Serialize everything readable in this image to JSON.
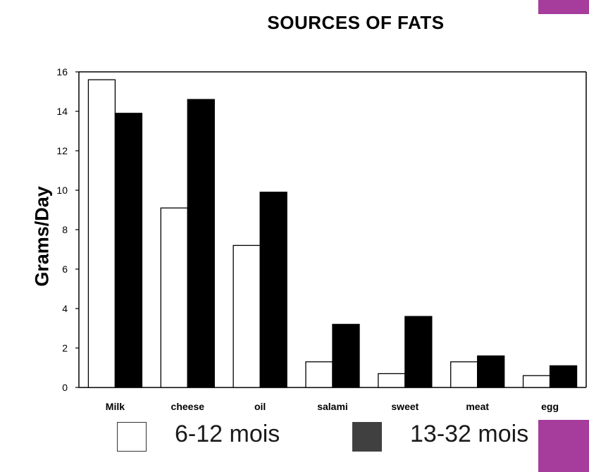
{
  "chart_data": {
    "type": "bar",
    "title": "SOURCES OF FATS",
    "ylabel": "Grams/Day",
    "xlabel": "",
    "ylim": [
      0,
      16
    ],
    "yticks": [
      "0",
      "2",
      "4",
      "6",
      "8",
      "10",
      "12",
      "14",
      "16"
    ],
    "categories": [
      "Milk",
      "cheese",
      "oil",
      "salami",
      "sweet",
      "meat",
      "egg"
    ],
    "series": [
      {
        "name": "6-12 mois",
        "values": [
          15.6,
          9.1,
          7.2,
          1.3,
          0.7,
          1.3,
          0.6
        ],
        "color": "#ffffff"
      },
      {
        "name": "13-32 mois",
        "values": [
          13.9,
          14.6,
          9.9,
          3.2,
          3.6,
          1.6,
          1.1
        ],
        "color": "#000000"
      }
    ],
    "grid": false,
    "legend_placement": "bottom"
  },
  "legend": {
    "items": [
      {
        "label": "6-12 mois",
        "fill": "#ffffff",
        "border": "#333333"
      },
      {
        "label": "13-32 mois",
        "fill": "#404040",
        "border": "#404040"
      }
    ]
  },
  "colors": {
    "accent": "#a63c9c"
  }
}
